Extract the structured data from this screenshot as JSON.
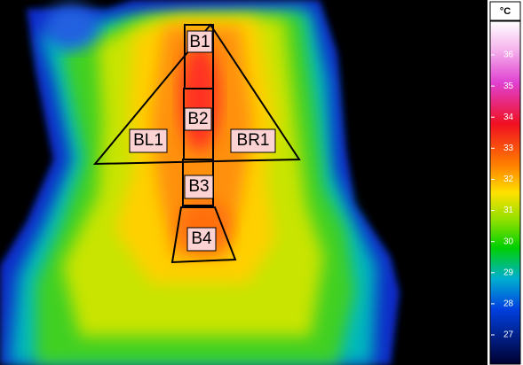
{
  "regions": [
    {
      "label": "B1"
    },
    {
      "label": "B2"
    },
    {
      "label": "BL1"
    },
    {
      "label": "BR1"
    },
    {
      "label": "B3"
    },
    {
      "label": "B4"
    }
  ],
  "scale": {
    "unit": "°C",
    "ticks": [
      36,
      35,
      34,
      33,
      32,
      31,
      30,
      29,
      28,
      27
    ]
  }
}
